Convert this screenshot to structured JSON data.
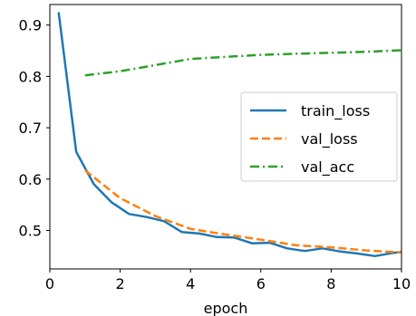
{
  "chart_data": {
    "type": "line",
    "title": "",
    "xlabel": "epoch",
    "ylabel": "",
    "xlim": [
      0,
      10
    ],
    "ylim": [
      0.425,
      0.94
    ],
    "xticks": [
      0,
      2,
      4,
      6,
      8,
      10
    ],
    "yticks": [
      0.5,
      0.6,
      0.7,
      0.8,
      0.9
    ],
    "xtick_labels": [
      "0",
      "2",
      "4",
      "6",
      "8",
      "10"
    ],
    "ytick_labels": [
      "0.5",
      "0.6",
      "0.7",
      "0.8",
      "0.9"
    ],
    "grid": false,
    "legend_position": "center-right",
    "series": [
      {
        "name": "train_loss",
        "color": "#1f77b4",
        "style": "solid",
        "x": [
          0.25,
          0.75,
          1.25,
          1.75,
          2.25,
          2.75,
          3.25,
          3.75,
          4.25,
          4.75,
          5.25,
          5.75,
          6.25,
          6.75,
          7.25,
          7.75,
          8.25,
          8.75,
          9.25,
          9.75,
          10.0
        ],
        "y": [
          0.925,
          0.653,
          0.59,
          0.555,
          0.532,
          0.526,
          0.518,
          0.497,
          0.494,
          0.487,
          0.486,
          0.475,
          0.476,
          0.465,
          0.46,
          0.465,
          0.459,
          0.455,
          0.45,
          0.456,
          0.458
        ]
      },
      {
        "name": "val_loss",
        "color": "#ff7f0e",
        "style": "dashed",
        "x": [
          1,
          2,
          3,
          4,
          5,
          6,
          7,
          8,
          9,
          10
        ],
        "y": [
          0.617,
          0.563,
          0.528,
          0.503,
          0.492,
          0.482,
          0.471,
          0.467,
          0.461,
          0.457
        ]
      },
      {
        "name": "val_acc",
        "color": "#2ca02c",
        "style": "dashdot",
        "x": [
          1,
          2,
          3,
          4,
          5,
          6,
          7,
          8,
          9,
          10
        ],
        "y": [
          0.802,
          0.81,
          0.822,
          0.834,
          0.838,
          0.842,
          0.844,
          0.846,
          0.848,
          0.851
        ]
      }
    ]
  }
}
